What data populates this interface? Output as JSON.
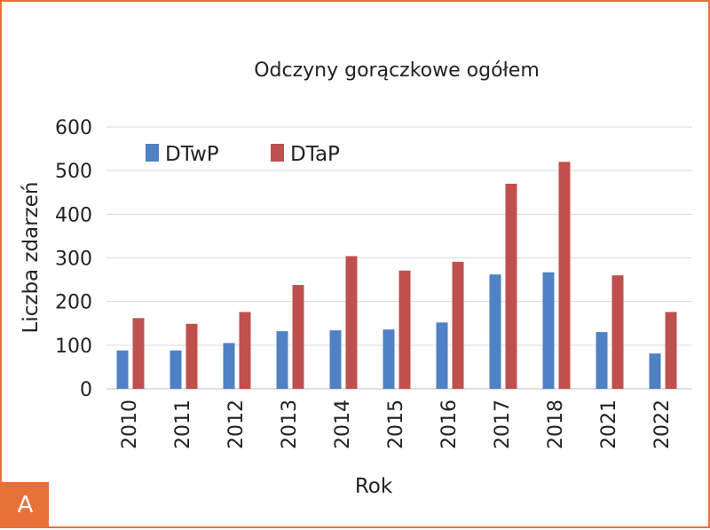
{
  "badge": "A",
  "chart_data": {
    "type": "bar",
    "title": "Odczyny gorączkowe ogółem",
    "xlabel": "Rok",
    "ylabel": "Liczba zdarzeń",
    "categories": [
      "2010",
      "2011",
      "2012",
      "2013",
      "2014",
      "2015",
      "2016",
      "2017",
      "2018",
      "2021",
      "2022"
    ],
    "series": [
      {
        "name": "DTwP",
        "color": "#4f81c4",
        "values": [
          88,
          88,
          105,
          132,
          134,
          136,
          152,
          262,
          267,
          130,
          81
        ]
      },
      {
        "name": "DTaP",
        "color": "#c0504d",
        "values": [
          162,
          149,
          176,
          238,
          304,
          271,
          291,
          470,
          520,
          260,
          176
        ]
      }
    ],
    "ylim": [
      0,
      600
    ],
    "yticks": [
      0,
      100,
      200,
      300,
      400,
      500,
      600
    ],
    "grid": true,
    "legend": "top-left"
  }
}
